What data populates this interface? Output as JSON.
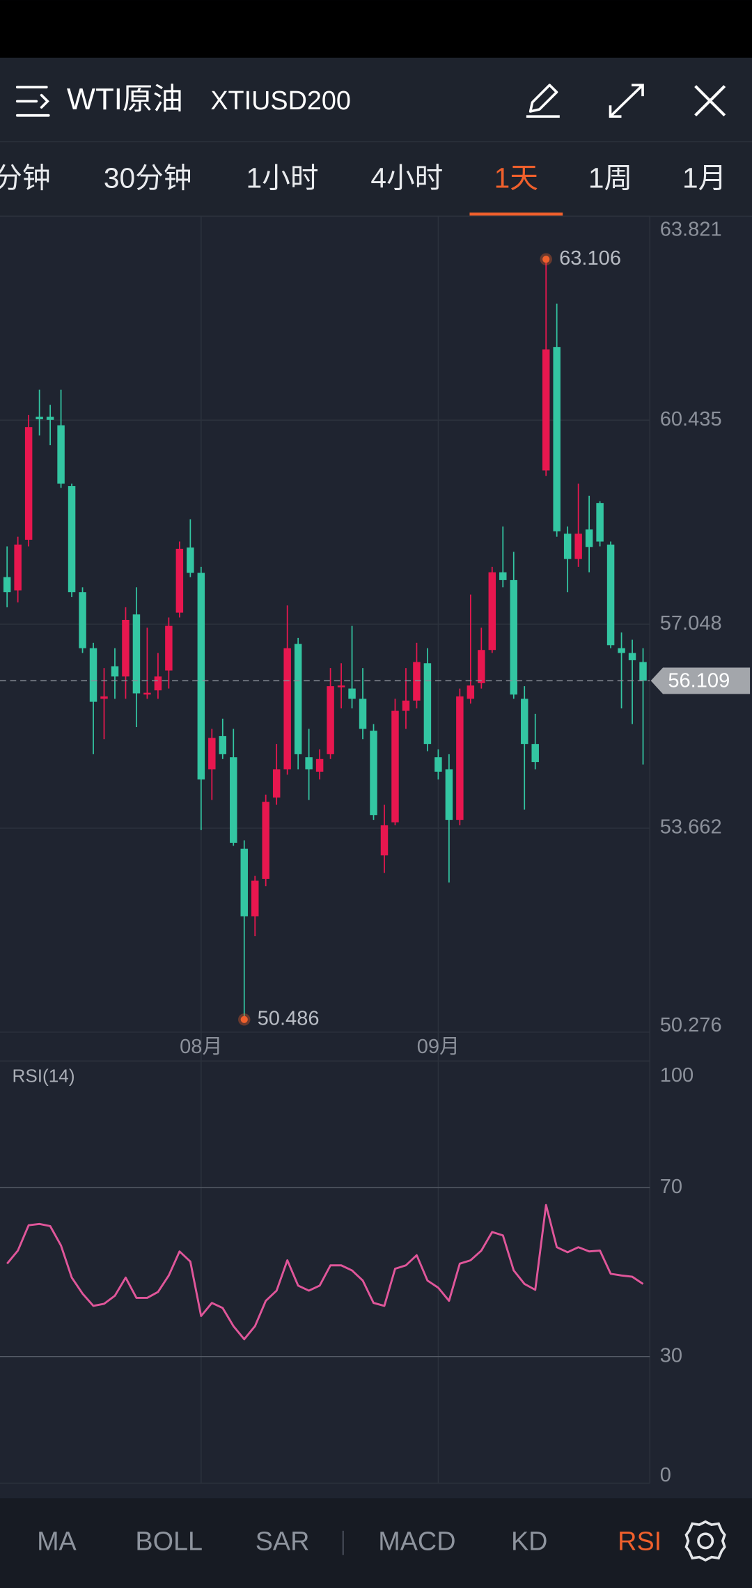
{
  "header": {
    "title": "WTI原油",
    "symbol": "XTIUSD200"
  },
  "tabs": [
    {
      "label": "分钟"
    },
    {
      "label": "30分钟"
    },
    {
      "label": "1小时"
    },
    {
      "label": "4小时"
    },
    {
      "label": "1天",
      "active": true
    },
    {
      "label": "1周"
    },
    {
      "label": "1月"
    }
  ],
  "chart_data": [
    {
      "type": "candlestick",
      "categories": [
        null,
        null,
        null,
        null,
        null,
        null,
        null,
        null,
        null,
        null,
        null,
        null,
        null,
        null,
        null,
        null,
        null,
        null,
        "08月",
        null,
        null,
        null,
        null,
        null,
        null,
        null,
        null,
        null,
        null,
        null,
        null,
        null,
        null,
        null,
        null,
        null,
        null,
        null,
        null,
        null,
        "09月",
        null,
        null,
        null,
        null,
        null,
        null,
        null,
        null,
        null,
        null,
        null,
        null,
        null,
        null,
        null,
        null,
        null,
        null,
        null
      ],
      "open": [
        57.83,
        57.61,
        58.45,
        60.49,
        60.49,
        60.35,
        59.34,
        57.58,
        56.65,
        55.81,
        56.35,
        56.18,
        57.21,
        55.88,
        55.95,
        56.28,
        57.24,
        58.32,
        57.9,
        54.64,
        55.19,
        54.84,
        53.32,
        52.2,
        52.82,
        54.17,
        54.64,
        56.72,
        54.84,
        54.6,
        54.89,
        56.0,
        55.98,
        55.81,
        55.28,
        53.21,
        53.76,
        55.61,
        55.78,
        56.4,
        54.84,
        54.64,
        53.8,
        55.81,
        56.07,
        56.62,
        57.91,
        57.78,
        55.81,
        55.06,
        59.6,
        61.65,
        58.55,
        58.13,
        58.62,
        59.06,
        58.37,
        56.65,
        56.57,
        56.42
      ],
      "high": [
        58.34,
        58.5,
        60.52,
        60.94,
        60.69,
        60.94,
        59.38,
        57.66,
        56.74,
        56.32,
        56.65,
        57.33,
        57.66,
        56.99,
        56.57,
        57.16,
        58.42,
        58.79,
        58.0,
        55.31,
        55.48,
        55.31,
        53.46,
        52.87,
        54.22,
        55.06,
        57.36,
        56.82,
        55.31,
        54.97,
        56.32,
        56.4,
        57.02,
        56.32,
        55.39,
        54.05,
        55.81,
        56.32,
        56.74,
        56.65,
        54.97,
        54.89,
        55.98,
        57.54,
        56.99,
        58.0,
        58.67,
        58.25,
        56.02,
        55.56,
        63.106,
        62.37,
        58.67,
        59.38,
        59.18,
        59.09,
        58.42,
        56.91,
        56.79,
        56.65
      ],
      "low": [
        57.33,
        57.41,
        58.34,
        60.18,
        60.02,
        59.31,
        57.5,
        56.57,
        54.89,
        55.14,
        55.81,
        55.81,
        55.34,
        55.81,
        55.81,
        55.98,
        57.16,
        57.83,
        53.63,
        54.13,
        54.81,
        53.37,
        50.486,
        51.87,
        52.7,
        54.05,
        54.55,
        54.64,
        54.13,
        54.47,
        54.81,
        55.65,
        55.65,
        55.14,
        53.8,
        52.92,
        53.71,
        55.31,
        55.65,
        54.94,
        54.47,
        52.76,
        53.71,
        55.73,
        55.98,
        56.57,
        57.66,
        55.81,
        53.97,
        54.64,
        59.51,
        58.5,
        57.58,
        58.0,
        57.91,
        58.34,
        56.65,
        55.65,
        55.39,
        54.72
      ],
      "close": [
        57.58,
        58.37,
        60.32,
        60.45,
        60.44,
        59.38,
        57.58,
        56.65,
        55.76,
        55.85,
        56.18,
        57.12,
        55.9,
        55.91,
        56.18,
        57.02,
        58.3,
        57.9,
        54.47,
        55.16,
        54.89,
        53.42,
        52.2,
        52.79,
        54.1,
        54.64,
        56.65,
        54.89,
        54.64,
        54.81,
        56.02,
        56.03,
        55.81,
        55.31,
        53.88,
        53.71,
        55.61,
        55.78,
        56.42,
        55.06,
        54.6,
        53.8,
        55.85,
        56.03,
        56.62,
        57.91,
        57.78,
        55.88,
        55.06,
        54.76,
        61.61,
        58.59,
        58.13,
        58.55,
        58.33,
        58.42,
        56.7,
        56.57,
        56.45,
        56.109
      ],
      "up_color": "#e8174f",
      "down_color": "#33c6a2",
      "ylim": [
        50.276,
        63.821
      ],
      "yticks": [
        63.821,
        60.435,
        57.048,
        53.662,
        50.276
      ],
      "grid": true
    },
    {
      "type": "line",
      "title": "RSI(14)",
      "color": "#e0569a",
      "values": [
        52.0,
        55.1,
        61.1,
        61.4,
        60.9,
        56.3,
        48.7,
        44.9,
        42.0,
        42.5,
        44.4,
        48.7,
        43.9,
        43.9,
        45.3,
        49.2,
        54.9,
        52.5,
        39.6,
        42.7,
        41.5,
        37.2,
        34.1,
        37.2,
        43.2,
        45.6,
        52.8,
        46.8,
        45.6,
        46.8,
        51.6,
        51.6,
        50.4,
        48.0,
        42.7,
        42.0,
        50.8,
        51.6,
        54.0,
        48.0,
        46.3,
        43.2,
        52.0,
        52.8,
        55.1,
        59.5,
        58.7,
        50.4,
        47.2,
        45.8,
        65.9,
        55.9,
        54.7,
        55.9,
        54.9,
        55.1,
        49.6,
        49.2,
        48.9,
        47.2
      ],
      "ylim": [
        0,
        100
      ],
      "yticks": [
        100,
        70,
        30,
        0
      ],
      "grid": true
    }
  ],
  "indicators": [
    {
      "label": "MA"
    },
    {
      "label": "BOLL"
    },
    {
      "label": "SAR"
    },
    {
      "label": "MACD"
    },
    {
      "label": "KD"
    },
    {
      "label": "RSI",
      "active": true
    }
  ]
}
